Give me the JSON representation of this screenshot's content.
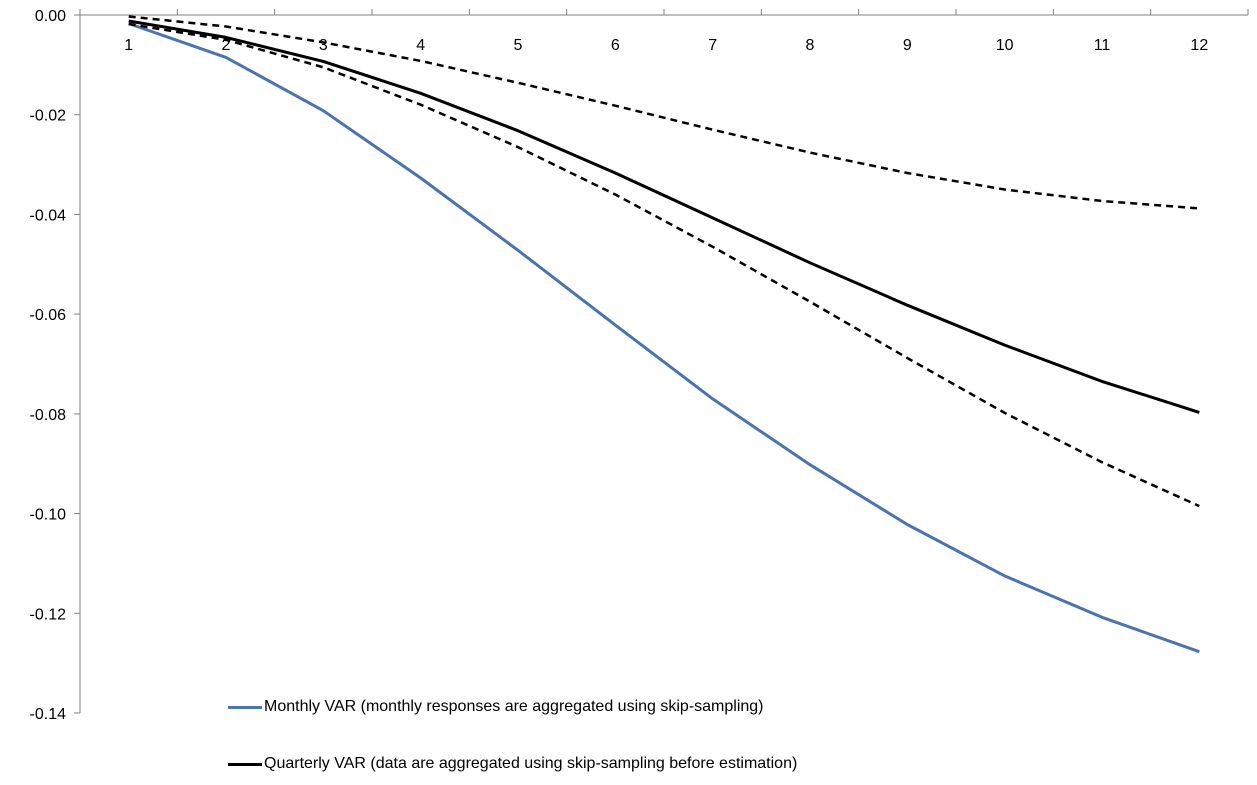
{
  "chart_data": {
    "type": "line",
    "title": "",
    "xlabel": "",
    "ylabel": "",
    "x": [
      1,
      2,
      3,
      4,
      5,
      6,
      7,
      8,
      9,
      10,
      11,
      12
    ],
    "x_tick_labels": [
      "1",
      "2",
      "3",
      "4",
      "5",
      "6",
      "7",
      "8",
      "9",
      "10",
      "11",
      "12"
    ],
    "ylim": [
      -0.14,
      0.0
    ],
    "y_ticks": [
      0.0,
      -0.02,
      -0.04,
      -0.06,
      -0.08,
      -0.1,
      -0.12,
      -0.14
    ],
    "y_tick_labels": [
      "0.00",
      "-0.02",
      "-0.04",
      "-0.06",
      "-0.08",
      "-0.10",
      "-0.12",
      "-0.14"
    ],
    "x_axis_position": "top (at y = 0)",
    "grid": false,
    "legend_position": "bottom",
    "series": [
      {
        "name": "Monthly VAR (monthly responses are aggregated using skip-sampling)",
        "color": "#4a74b0",
        "style": "solid",
        "values": [
          -0.0017,
          -0.0085,
          -0.0192,
          -0.0327,
          -0.0472,
          -0.0622,
          -0.077,
          -0.0902,
          -0.1022,
          -0.1125,
          -0.1208,
          -0.1277
        ]
      },
      {
        "name": "Quarterly VAR (data are aggregated using skip-sampling before estimation)",
        "color": "#000000",
        "style": "solid",
        "values": [
          -0.0012,
          -0.0045,
          -0.0093,
          -0.0157,
          -0.0232,
          -0.0317,
          -0.0407,
          -0.0497,
          -0.0582,
          -0.0662,
          -0.0735,
          -0.0797
        ]
      },
      {
        "color": "#000000",
        "style": "dashed",
        "values": [
          -0.0003,
          -0.0023,
          -0.0055,
          -0.0092,
          -0.0136,
          -0.0182,
          -0.023,
          -0.0276,
          -0.0317,
          -0.035,
          -0.0373,
          -0.0388
        ]
      },
      {
        "color": "#000000",
        "style": "dashed",
        "values": [
          -0.0018,
          -0.005,
          -0.0105,
          -0.018,
          -0.0265,
          -0.036,
          -0.0465,
          -0.0575,
          -0.0688,
          -0.0798,
          -0.0897,
          -0.0985
        ]
      }
    ]
  }
}
